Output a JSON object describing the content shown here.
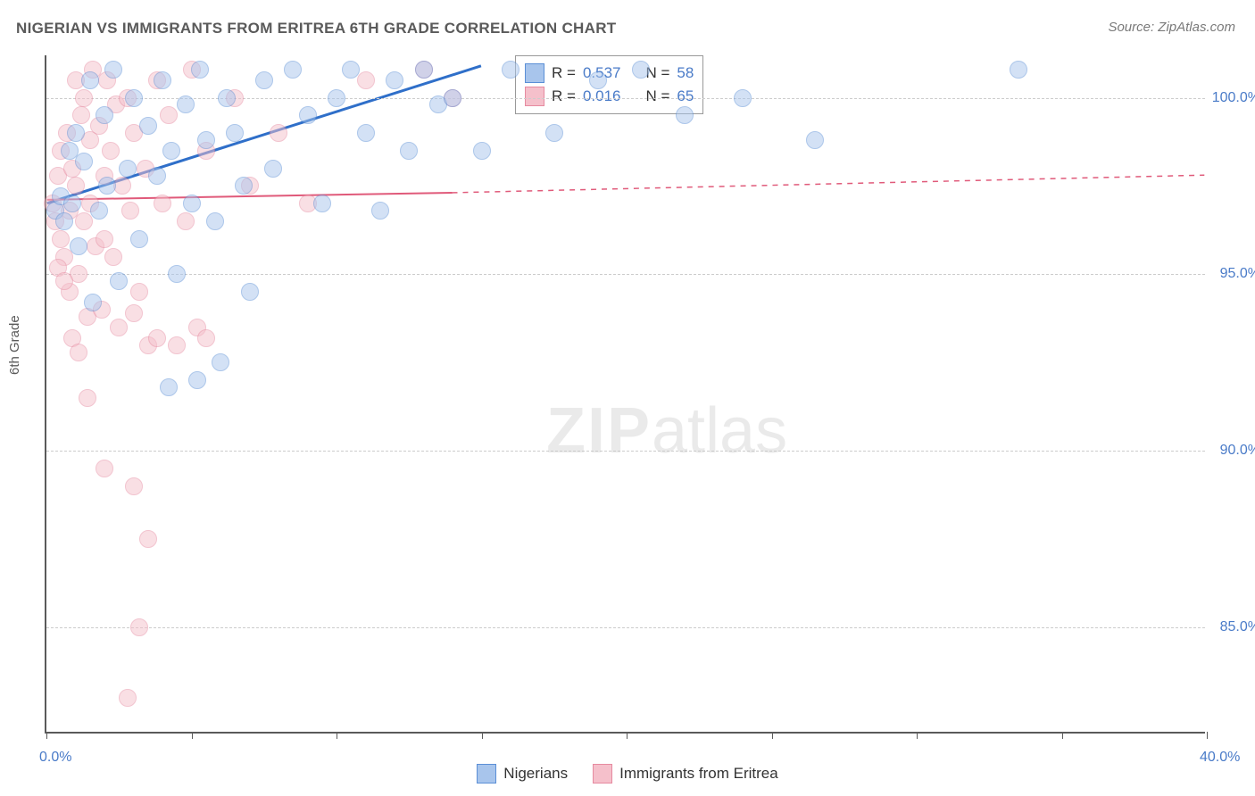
{
  "chart": {
    "title": "NIGERIAN VS IMMIGRANTS FROM ERITREA 6TH GRADE CORRELATION CHART",
    "source": "Source: ZipAtlas.com",
    "y_axis_label": "6th Grade",
    "type": "scatter",
    "background_color": "#ffffff",
    "grid_color": "#cccccc",
    "axis_color": "#5a5a5a",
    "tick_label_color": "#4a7bc8",
    "xlim": [
      0,
      40
    ],
    "ylim": [
      82,
      101.2
    ],
    "x_ticks": [
      0,
      5,
      10,
      15,
      20,
      25,
      30,
      35,
      40
    ],
    "x_tick_labels": {
      "0": "0.0%",
      "40": "40.0%"
    },
    "y_grid": [
      85,
      90,
      95,
      100
    ],
    "y_tick_labels": {
      "85": "85.0%",
      "90": "90.0%",
      "95": "95.0%",
      "100": "100.0%"
    },
    "series": [
      {
        "name": "Nigerians",
        "color_fill": "#a8c5ec",
        "color_stroke": "#5b8fd6",
        "marker_size": 20,
        "R": "0.537",
        "N": "58",
        "trend": {
          "x1": 0,
          "y1": 97.0,
          "x2": 15,
          "y2": 100.9,
          "color": "#2f6fc9",
          "width": 3,
          "dash_extend": false
        },
        "points": [
          [
            0.3,
            96.8
          ],
          [
            0.5,
            97.2
          ],
          [
            0.6,
            96.5
          ],
          [
            0.8,
            98.5
          ],
          [
            0.9,
            97.0
          ],
          [
            1.0,
            99.0
          ],
          [
            1.1,
            95.8
          ],
          [
            1.3,
            98.2
          ],
          [
            1.5,
            100.5
          ],
          [
            1.6,
            94.2
          ],
          [
            1.8,
            96.8
          ],
          [
            2.0,
            99.5
          ],
          [
            2.1,
            97.5
          ],
          [
            2.3,
            100.8
          ],
          [
            2.5,
            94.8
          ],
          [
            2.8,
            98.0
          ],
          [
            3.0,
            100.0
          ],
          [
            3.2,
            96.0
          ],
          [
            3.5,
            99.2
          ],
          [
            3.8,
            97.8
          ],
          [
            4.0,
            100.5
          ],
          [
            4.3,
            98.5
          ],
          [
            4.5,
            95.0
          ],
          [
            4.8,
            99.8
          ],
          [
            5.0,
            97.0
          ],
          [
            5.3,
            100.8
          ],
          [
            5.5,
            98.8
          ],
          [
            5.8,
            96.5
          ],
          [
            6.0,
            92.5
          ],
          [
            6.2,
            100.0
          ],
          [
            6.5,
            99.0
          ],
          [
            6.8,
            97.5
          ],
          [
            7.0,
            94.5
          ],
          [
            7.5,
            100.5
          ],
          [
            7.8,
            98.0
          ],
          [
            8.5,
            100.8
          ],
          [
            9.0,
            99.5
          ],
          [
            9.5,
            97.0
          ],
          [
            10.0,
            100.0
          ],
          [
            10.5,
            100.8
          ],
          [
            11.0,
            99.0
          ],
          [
            11.5,
            96.8
          ],
          [
            12.0,
            100.5
          ],
          [
            12.5,
            98.5
          ],
          [
            13.0,
            100.8
          ],
          [
            13.5,
            99.8
          ],
          [
            14.0,
            100.0
          ],
          [
            15.0,
            98.5
          ],
          [
            16.0,
            100.8
          ],
          [
            17.5,
            99.0
          ],
          [
            19.0,
            100.5
          ],
          [
            20.5,
            100.8
          ],
          [
            22.0,
            99.5
          ],
          [
            24.0,
            100.0
          ],
          [
            26.5,
            98.8
          ],
          [
            33.5,
            100.8
          ],
          [
            4.2,
            91.8
          ],
          [
            5.2,
            92.0
          ]
        ]
      },
      {
        "name": "Immigrants from Eritrea",
        "color_fill": "#f5c0cb",
        "color_stroke": "#e68aa0",
        "marker_size": 20,
        "R": "0.016",
        "N": "65",
        "trend": {
          "x1": 0,
          "y1": 97.1,
          "x2": 14,
          "y2": 97.3,
          "extend_x": 40,
          "extend_y": 97.8,
          "color": "#e05a7a",
          "width": 2,
          "dash_extend": true
        },
        "points": [
          [
            0.2,
            97.0
          ],
          [
            0.3,
            96.5
          ],
          [
            0.4,
            97.8
          ],
          [
            0.5,
            96.0
          ],
          [
            0.5,
            98.5
          ],
          [
            0.6,
            95.5
          ],
          [
            0.7,
            99.0
          ],
          [
            0.8,
            96.8
          ],
          [
            0.8,
            94.5
          ],
          [
            0.9,
            98.0
          ],
          [
            1.0,
            100.5
          ],
          [
            1.0,
            97.5
          ],
          [
            1.1,
            95.0
          ],
          [
            1.2,
            99.5
          ],
          [
            1.3,
            96.5
          ],
          [
            1.3,
            100.0
          ],
          [
            1.4,
            93.8
          ],
          [
            1.5,
            98.8
          ],
          [
            1.5,
            97.0
          ],
          [
            1.6,
            100.8
          ],
          [
            1.7,
            95.8
          ],
          [
            1.8,
            99.2
          ],
          [
            1.9,
            94.0
          ],
          [
            2.0,
            97.8
          ],
          [
            2.0,
            96.0
          ],
          [
            2.1,
            100.5
          ],
          [
            2.2,
            98.5
          ],
          [
            2.3,
            95.5
          ],
          [
            2.4,
            99.8
          ],
          [
            2.5,
            93.5
          ],
          [
            2.6,
            97.5
          ],
          [
            2.8,
            100.0
          ],
          [
            2.9,
            96.8
          ],
          [
            3.0,
            99.0
          ],
          [
            3.2,
            94.5
          ],
          [
            3.4,
            98.0
          ],
          [
            3.5,
            93.0
          ],
          [
            3.8,
            100.5
          ],
          [
            4.0,
            97.0
          ],
          [
            4.2,
            99.5
          ],
          [
            4.5,
            93.0
          ],
          [
            4.8,
            96.5
          ],
          [
            5.0,
            100.8
          ],
          [
            5.2,
            93.5
          ],
          [
            5.5,
            98.5
          ],
          [
            6.5,
            100.0
          ],
          [
            7.0,
            97.5
          ],
          [
            8.0,
            99.0
          ],
          [
            9.0,
            97.0
          ],
          [
            11.0,
            100.5
          ],
          [
            13.0,
            100.8
          ],
          [
            14.0,
            100.0
          ],
          [
            2.0,
            89.5
          ],
          [
            3.0,
            89.0
          ],
          [
            3.5,
            87.5
          ],
          [
            3.2,
            85.0
          ],
          [
            2.8,
            83.0
          ],
          [
            0.4,
            95.2
          ],
          [
            0.6,
            94.8
          ],
          [
            0.9,
            93.2
          ],
          [
            1.1,
            92.8
          ],
          [
            1.4,
            91.5
          ],
          [
            3.0,
            93.9
          ],
          [
            3.8,
            93.2
          ],
          [
            5.5,
            93.2
          ]
        ]
      }
    ],
    "legend_top": {
      "rows": [
        {
          "swatch_fill": "#a8c5ec",
          "swatch_stroke": "#5b8fd6",
          "r_label": "R =",
          "r_value": "0.537",
          "n_label": "N =",
          "n_value": "58"
        },
        {
          "swatch_fill": "#f5c0cb",
          "swatch_stroke": "#e68aa0",
          "r_label": "R =",
          "r_value": "0.016",
          "n_label": "N =",
          "n_value": "65"
        }
      ]
    },
    "legend_bottom": {
      "items": [
        {
          "swatch_fill": "#a8c5ec",
          "swatch_stroke": "#5b8fd6",
          "label": "Nigerians"
        },
        {
          "swatch_fill": "#f5c0cb",
          "swatch_stroke": "#e68aa0",
          "label": "Immigrants from Eritrea"
        }
      ]
    },
    "watermark": {
      "bold": "ZIP",
      "rest": "atlas"
    }
  }
}
